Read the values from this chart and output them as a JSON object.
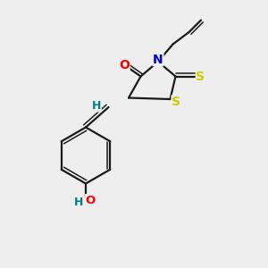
{
  "background_color": "#eeeeee",
  "bond_color": "#1a1a1a",
  "O_color": "#ff0000",
  "N_color": "#0000cc",
  "S_color": "#cccc00",
  "H_color": "#008080",
  "figsize": [
    3.0,
    3.0
  ],
  "dpi": 100,
  "xlim": [
    0,
    10
  ],
  "ylim": [
    0,
    10
  ]
}
